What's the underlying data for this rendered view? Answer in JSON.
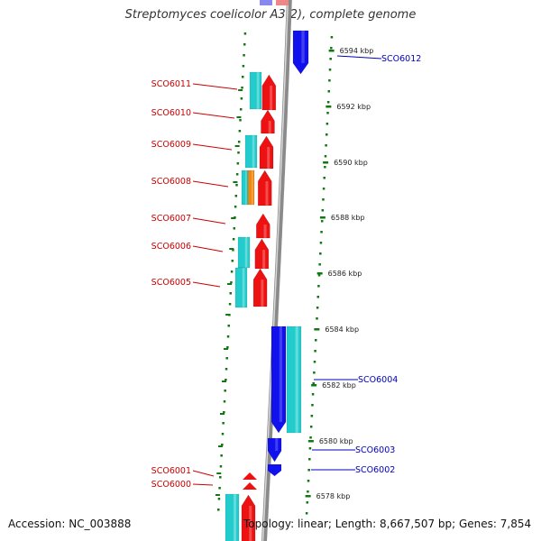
{
  "title": "Streptomyces coelicolor A3(2), complete genome",
  "accession_text": "Accession: NC_003888",
  "summary_text": "Topology: linear; Length: 8,667,507 bp; Genes: 7,854",
  "colors": {
    "forward_cds": "#ee1111",
    "reverse_cds": "#1111ee",
    "gene_forward": "#22cccc",
    "gene_reverse": "#22cccc",
    "other_feature": "#ee8811",
    "backbone": "#8a8a8a",
    "tick": "#117711",
    "forward_label": "#cc0000",
    "reverse_label": "#0000bb"
  },
  "scale_ticks": [
    "6594 kbp",
    "6592 kbp",
    "6590 kbp",
    "6588 kbp",
    "6586 kbp",
    "6584 kbp",
    "6582 kbp",
    "6580 kbp",
    "6578 kbp"
  ],
  "forward_genes": [
    "SCO6011",
    "SCO6010",
    "SCO6009",
    "SCO6008",
    "SCO6007",
    "SCO6006",
    "SCO6005",
    "SCO6001",
    "SCO6000"
  ],
  "reverse_genes": [
    "SCO6012",
    "SCO6004",
    "SCO6003",
    "SCO6002"
  ]
}
